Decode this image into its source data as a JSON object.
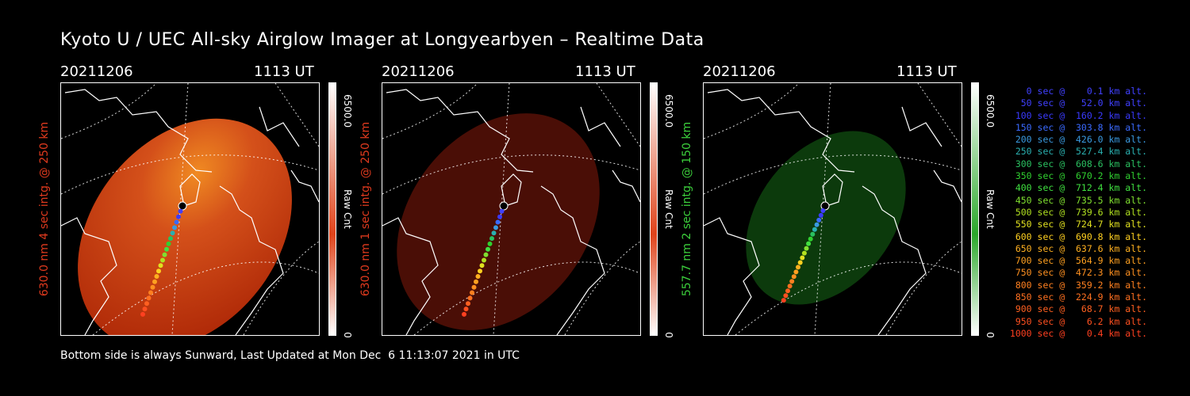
{
  "title": "Kyoto U / UEC All-sky Airglow Imager at Longyearbyen – Realtime Data",
  "footer": "Bottom side is always Sunward, Last Updated at Mon Dec  6 11:13:07 2021 in UTC",
  "panels": [
    {
      "date": "20211206",
      "time": "1113 UT",
      "ylabel": "630.0 nm 4 sec intg. @ 250 km",
      "ylabel_color": "#e03a1e",
      "cbar_max": "6500.0",
      "cbar_unit": "Raw Cnt",
      "cbar_min": "0",
      "glow_color": "#c23a0a",
      "cbar_color": "#e0431a",
      "track_end_x": 0.317,
      "track_end_y": 0.918
    },
    {
      "date": "20211206",
      "time": "1113 UT",
      "ylabel": "630.0 nm 1 sec intg. @ 250 km",
      "ylabel_color": "#e03a1e",
      "cbar_max": "6500.0",
      "cbar_unit": "Raw Cnt",
      "cbar_min": "0",
      "glow_color": "#4a0e06",
      "cbar_color": "#e0431a",
      "track_end_x": 0.317,
      "track_end_y": 0.918
    },
    {
      "date": "20211206",
      "time": "1113 UT",
      "ylabel": "557.7 nm 2 sec intg. @ 150 km",
      "ylabel_color": "#3cd03c",
      "cbar_max": "6500.0",
      "cbar_unit": "Raw Cnt",
      "cbar_min": "0",
      "glow_color": "#0c3a0c",
      "cbar_color": "#2aa62a",
      "track_end_x": 0.31,
      "track_end_y": 0.862
    }
  ],
  "legend": [
    {
      "text": "0 sec @    0.1 km alt.",
      "color": "#4040ff"
    },
    {
      "text": "50 sec @   52.0 km alt.",
      "color": "#4040ff"
    },
    {
      "text": "100 sec @  160.2 km alt.",
      "color": "#3a3aff"
    },
    {
      "text": "150 sec @  303.8 km alt.",
      "color": "#3a6aff"
    },
    {
      "text": "200 sec @  426.0 km alt.",
      "color": "#3a9ae0"
    },
    {
      "text": "250 sec @  527.4 km alt.",
      "color": "#2ab0b0"
    },
    {
      "text": "300 sec @  608.6 km alt.",
      "color": "#2ac060"
    },
    {
      "text": "350 sec @  670.2 km alt.",
      "color": "#30d030"
    },
    {
      "text": "400 sec @  712.4 km alt.",
      "color": "#40e040"
    },
    {
      "text": "450 sec @  735.5 km alt.",
      "color": "#80e030"
    },
    {
      "text": "500 sec @  739.6 km alt.",
      "color": "#b0e020"
    },
    {
      "text": "550 sec @  724.7 km alt.",
      "color": "#e0e020"
    },
    {
      "text": "600 sec @  690.8 km alt.",
      "color": "#ffd020"
    },
    {
      "text": "650 sec @  637.6 km alt.",
      "color": "#ffb020"
    },
    {
      "text": "700 sec @  564.9 km alt.",
      "color": "#ffa020"
    },
    {
      "text": "750 sec @  472.3 km alt.",
      "color": "#ff9020"
    },
    {
      "text": "800 sec @  359.2 km alt.",
      "color": "#ff8020"
    },
    {
      "text": "850 sec @  224.9 km alt.",
      "color": "#ff7020"
    },
    {
      "text": "900 sec @   68.7 km alt.",
      "color": "#ff6020"
    },
    {
      "text": "950 sec @    6.2 km alt.",
      "color": "#ff5020"
    },
    {
      "text": "1000 sec @    0.4 km alt.",
      "color": "#ff4020"
    }
  ]
}
